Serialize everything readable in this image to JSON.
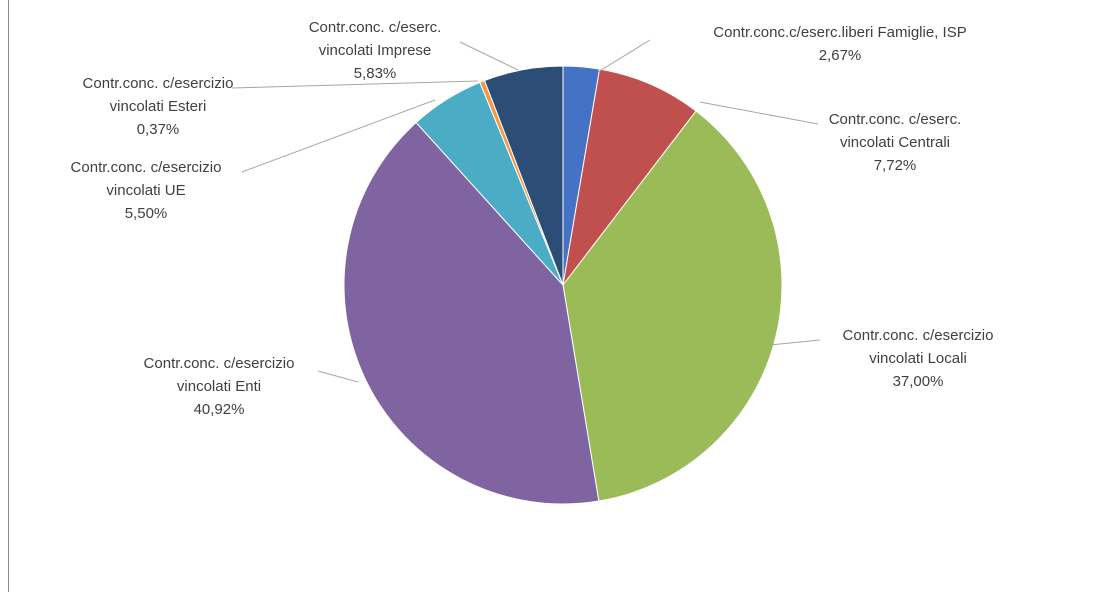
{
  "chart_data": {
    "type": "pie",
    "title": "",
    "start_angle_deg": 0,
    "direction": "clockwise",
    "slices": [
      {
        "name": "Contr.conc.c/eserc.liberi Famiglie, ISP",
        "label_lines": [
          "Contr.conc.c/eserc.liberi Famiglie, ISP"
        ],
        "value": 2.67,
        "value_label": "2,67%",
        "color": "#4472C4"
      },
      {
        "name": "Contr.conc. c/eserc. vincolati Centrali",
        "label_lines": [
          "Contr.conc. c/eserc.",
          "vincolati Centrali"
        ],
        "value": 7.72,
        "value_label": "7,72%",
        "color": "#C0504D"
      },
      {
        "name": "Contr.conc. c/esercizio vincolati Locali",
        "label_lines": [
          "Contr.conc. c/esercizio",
          "vincolati Locali"
        ],
        "value": 37.0,
        "value_label": "37,00%",
        "color": "#9BBB59"
      },
      {
        "name": "Contr.conc. c/esercizio vincolati Enti",
        "label_lines": [
          "Contr.conc. c/esercizio",
          "vincolati Enti"
        ],
        "value": 40.92,
        "value_label": "40,92%",
        "color": "#8064A2"
      },
      {
        "name": "Contr.conc. c/esercizio vincolati UE",
        "label_lines": [
          "Contr.conc. c/esercizio",
          "vincolati UE"
        ],
        "value": 5.5,
        "value_label": "5,50%",
        "color": "#4BACC6"
      },
      {
        "name": "Contr.conc. c/esercizio vincolati Esteri",
        "label_lines": [
          "Contr.conc. c/esercizio",
          "vincolati Esteri"
        ],
        "value": 0.37,
        "value_label": "0,37%",
        "color": "#F79646"
      },
      {
        "name": "Contr.conc. c/eserc. vincolati Imprese",
        "label_lines": [
          "Contr.conc. c/eserc.",
          "vincolati Imprese"
        ],
        "value": 5.83,
        "value_label": "5,83%",
        "color": "#2C4D75"
      }
    ]
  }
}
